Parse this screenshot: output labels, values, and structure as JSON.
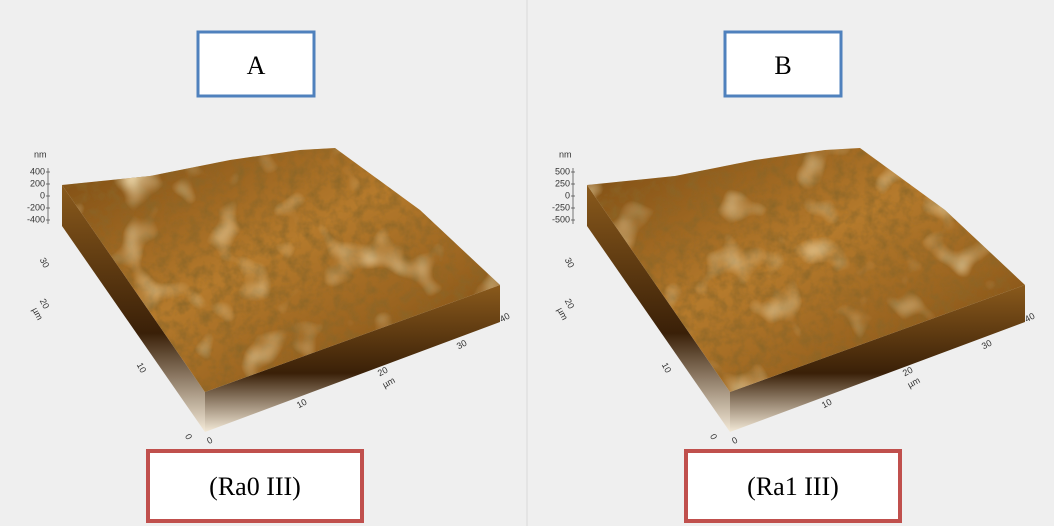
{
  "panels": [
    {
      "label": "A",
      "caption": "(Ra0 III)",
      "z_unit": "nm",
      "z_ticks": [
        "400",
        "200",
        "0",
        "-200",
        "-400"
      ],
      "y_axis": [
        "30",
        "20",
        "µm",
        "10",
        "0"
      ],
      "x_axis": [
        "0",
        "10",
        "20",
        "µm",
        "30",
        "40"
      ]
    },
    {
      "label": "B",
      "caption": "(Ra1 III)",
      "z_unit": "nm",
      "z_ticks": [
        "500",
        "250",
        "0",
        "-250",
        "-500"
      ],
      "y_axis": [
        "30",
        "20",
        "µm",
        "10",
        "0"
      ],
      "x_axis": [
        "0",
        "10",
        "20",
        "µm",
        "30",
        "40"
      ]
    }
  ]
}
